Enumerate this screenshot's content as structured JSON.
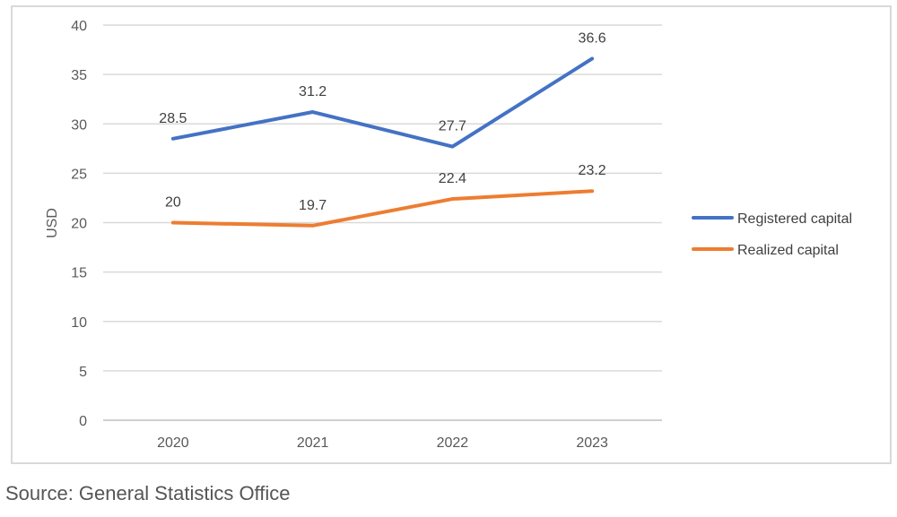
{
  "chart_data": {
    "type": "line",
    "title": "",
    "xlabel": "",
    "ylabel": "USD",
    "categories": [
      "2020",
      "2021",
      "2022",
      "2023"
    ],
    "ylim": [
      0,
      40
    ],
    "yticks": [
      0,
      5,
      10,
      15,
      20,
      25,
      30,
      35,
      40
    ],
    "grid": true,
    "legend_position": "right",
    "series": [
      {
        "name": "Registered capital",
        "values": [
          28.5,
          31.2,
          27.7,
          36.6
        ],
        "labels": [
          "28.5",
          "31.2",
          "27.7",
          "36.6"
        ],
        "color": "#4472c4"
      },
      {
        "name": "Realized capital",
        "values": [
          20,
          19.7,
          22.4,
          23.2
        ],
        "labels": [
          "20",
          "19.7",
          "22.4",
          "23.2"
        ],
        "color": "#ed7d31"
      }
    ]
  },
  "source": "Source: General Statistics Office"
}
